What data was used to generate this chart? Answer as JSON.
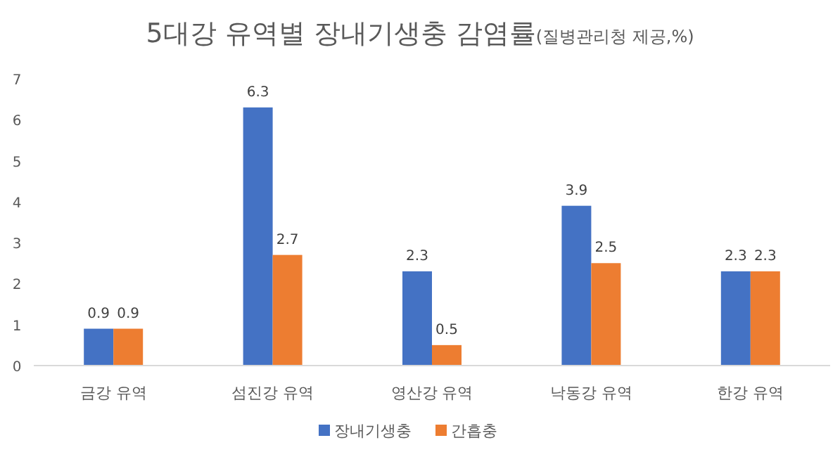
{
  "chart_data": {
    "type": "bar",
    "title": "5대강 유역별 장내기생충 감염률",
    "subtitle": "(질병관리청 제공,%)",
    "categories": [
      "금강 유역",
      "섬진강 유역",
      "영산강 유역",
      "낙동강 유역",
      "한강 유역"
    ],
    "series": [
      {
        "name": "장내기생충",
        "color": "#4472c4",
        "values": [
          0.9,
          6.3,
          2.3,
          3.9,
          2.3
        ]
      },
      {
        "name": "간흡충",
        "color": "#ed7d31",
        "values": [
          0.9,
          2.7,
          0.5,
          2.5,
          2.3
        ]
      }
    ],
    "ylim": [
      0,
      7
    ],
    "yticks": [
      0,
      1,
      2,
      3,
      4,
      5,
      6,
      7
    ],
    "data_labels": true,
    "legend": "bottom"
  }
}
